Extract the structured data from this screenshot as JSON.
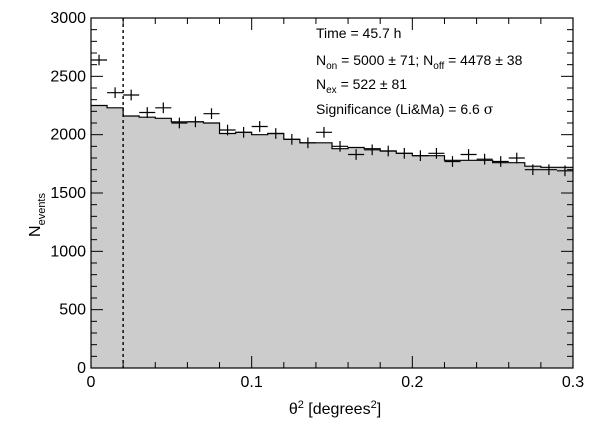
{
  "chart_data": {
    "type": "histogram",
    "xlim": [
      0,
      0.3
    ],
    "ylim": [
      0,
      3000
    ],
    "xlabel_symbol": "θ",
    "xlabel_sup": "2",
    "xlabel_text": " [degrees",
    "xlabel_sup2": "2",
    "xlabel_close": "]",
    "ylabel_main": "N",
    "ylabel_sub": "events",
    "x_ticks": [
      0,
      0.1,
      0.2,
      0.3
    ],
    "x_tick_labels": [
      "0",
      "0.1",
      "0.2",
      "0.3"
    ],
    "y_ticks": [
      0,
      500,
      1000,
      1500,
      2000,
      2500,
      3000
    ],
    "y_tick_labels": [
      "0",
      "500",
      "1000",
      "1500",
      "2000",
      "2500",
      "3000"
    ],
    "cut_line_x": 0.02,
    "bin_width": 0.01,
    "off_histogram": {
      "color": "#cccccc",
      "bin_edges": [
        0,
        0.01,
        0.02,
        0.03,
        0.04,
        0.05,
        0.06,
        0.07,
        0.08,
        0.09,
        0.1,
        0.11,
        0.12,
        0.13,
        0.14,
        0.15,
        0.16,
        0.17,
        0.18,
        0.19,
        0.2,
        0.21,
        0.22,
        0.23,
        0.24,
        0.25,
        0.26,
        0.27,
        0.28,
        0.29,
        0.3
      ],
      "values": [
        2250,
        2230,
        2160,
        2150,
        2140,
        2110,
        2110,
        2100,
        2010,
        2020,
        2000,
        2010,
        1960,
        1930,
        1930,
        1880,
        1890,
        1880,
        1860,
        1840,
        1820,
        1820,
        1780,
        1780,
        1780,
        1760,
        1760,
        1730,
        1720,
        1720
      ]
    },
    "on_points": {
      "x": [
        0.005,
        0.015,
        0.025,
        0.035,
        0.045,
        0.055,
        0.065,
        0.075,
        0.085,
        0.095,
        0.105,
        0.115,
        0.125,
        0.135,
        0.145,
        0.155,
        0.165,
        0.175,
        0.185,
        0.195,
        0.205,
        0.215,
        0.225,
        0.235,
        0.245,
        0.255,
        0.265,
        0.275,
        0.285,
        0.295
      ],
      "y": [
        2640,
        2360,
        2340,
        2190,
        2230,
        2100,
        2110,
        2180,
        2040,
        2020,
        2070,
        2010,
        1960,
        1930,
        2020,
        1900,
        1830,
        1870,
        1860,
        1840,
        1820,
        1840,
        1770,
        1830,
        1790,
        1770,
        1800,
        1700,
        1700,
        1690
      ],
      "yerr": 46
    },
    "annotations": {
      "time": "Time = 45.7 h",
      "non_label": "N",
      "non_sub": "on",
      "non_value": " = 5000 ± 71; N",
      "noff_sub": "off",
      "noff_value": " = 4478 ± 38",
      "nex_label": "N",
      "nex_sub": "ex",
      "nex_value": " = 522 ± 81",
      "significance_text": "Significance (Li&Ma) = 6.6 ",
      "significance_symbol": "σ"
    }
  }
}
